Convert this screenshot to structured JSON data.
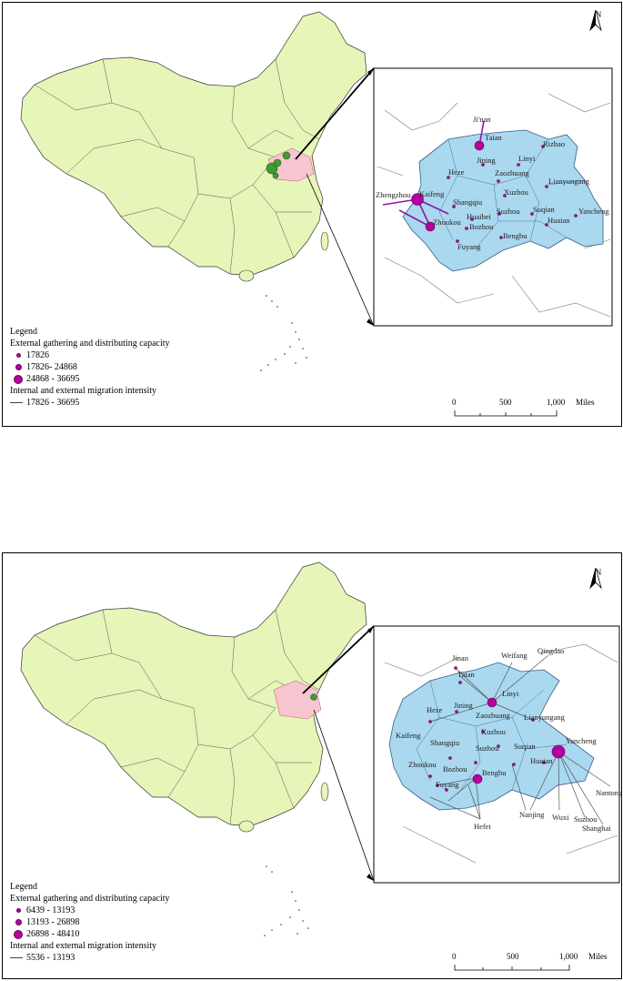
{
  "maps": [
    {
      "id": "top",
      "north_label": "N",
      "legend": {
        "title": "Legend",
        "capacity_heading": "External gathering and distributing capacity",
        "capacity_classes": [
          "17826",
          "17826- 24868",
          "24868 - 36695"
        ],
        "intensity_heading": "Internal and external migration intensity",
        "intensity_classes": [
          "17826 - 36695"
        ]
      },
      "scale": {
        "ticks": [
          "0",
          "500",
          "1,000"
        ],
        "unit": "Miles"
      },
      "cities": [
        "Ji'nan",
        "Taian",
        "Rizhao",
        "Linyi",
        "Jining",
        "Heze",
        "Zaozhuang",
        "Lianyungang",
        "Zhengzhou",
        "Kaifeng",
        "Shangqiu",
        "Xuzhou",
        "Suqian",
        "Zhoukou",
        "Huaibei",
        "Suzhou",
        "Bozhou",
        "Huaian",
        "Yancheng",
        "Bengbu",
        "Fuyang"
      ],
      "colors": {
        "mainland": "#e6f5b8",
        "region": "#a9d8ef",
        "node": "#b5009d",
        "flow": "#8a1a9e",
        "overview_nodes": "#3e9b35"
      }
    },
    {
      "id": "bottom",
      "north_label": "N",
      "legend": {
        "title": "Legend",
        "capacity_heading": "External gathering and distributing capacity",
        "capacity_classes": [
          "6439 - 13193",
          "13193 - 26898",
          "26898 - 48410"
        ],
        "intensity_heading": "Internal and external migration intensity",
        "intensity_classes": [
          "5536 - 13193"
        ]
      },
      "scale": {
        "ticks": [
          "0",
          "500",
          "1,000"
        ],
        "unit": "Miles"
      },
      "cities": [
        "Jinan",
        "Taian",
        "Weifang",
        "Qingdao",
        "Linyi",
        "Heze",
        "Jining",
        "Zaozhuang",
        "Lianyungang",
        "Kaifeng",
        "Shangqiu",
        "Xuzhou",
        "Suzhou",
        "Suqian",
        "Yancheng",
        "Huaian",
        "Zhoukou",
        "Bozhou",
        "Bengbu",
        "Fuyang",
        "Hefei",
        "Nanjing",
        "Wuxi",
        "Suzhou",
        "Shanghai",
        "Nantong"
      ],
      "colors": {
        "mainland": "#e6f5b8",
        "region": "#a9d8ef",
        "node": "#b5009d",
        "flow": "#555555",
        "overview_nodes": "#3e9b35"
      }
    }
  ]
}
